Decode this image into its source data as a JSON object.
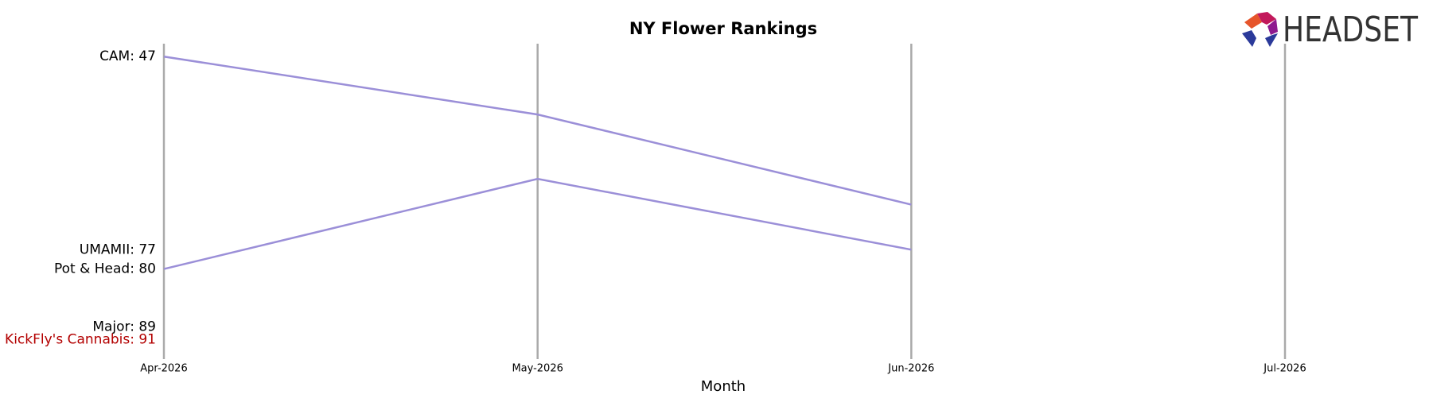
{
  "chart_data": {
    "type": "bump",
    "title": "NY Flower Rankings",
    "xlabel": "Month",
    "logo_text": "HEADSET",
    "categories": [
      "Apr-2026",
      "May-2026",
      "Jun-2026",
      "Jul-2026"
    ],
    "ylim": [
      45,
      94
    ],
    "y_inverted": true,
    "series": [
      {
        "color": "#9b8fd8",
        "values": [
          47,
          56,
          70,
          null
        ]
      },
      {
        "color": "#9b8fd8",
        "values": [
          80,
          66,
          77,
          null
        ]
      }
    ],
    "start_labels": [
      {
        "label": "CAM: 47",
        "value": 47,
        "color": "#000000"
      },
      {
        "label": "UMAMII: 77",
        "value": 77,
        "color": "#000000"
      },
      {
        "label": "Pot & Head: 80",
        "value": 80,
        "color": "#000000"
      },
      {
        "label": "Major: 89",
        "value": 89,
        "color": "#000000"
      },
      {
        "label": "KickFly's Cannabis: 91",
        "value": 91,
        "color": "#b30000"
      }
    ]
  }
}
